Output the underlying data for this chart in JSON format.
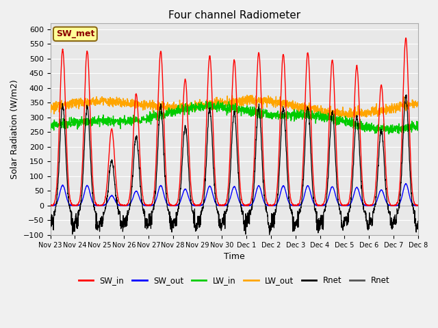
{
  "title": "Four channel Radiometer",
  "xlabel": "Time",
  "ylabel": "Solar Radiation (W/m2)",
  "ylim": [
    -100,
    620
  ],
  "yticks": [
    -100,
    -50,
    0,
    50,
    100,
    150,
    200,
    250,
    300,
    350,
    400,
    450,
    500,
    550,
    600
  ],
  "x_tick_labels": [
    "Nov 23",
    "Nov 24",
    "Nov 25",
    "Nov 26",
    "Nov 27",
    "Nov 28",
    "Nov 29",
    "Nov 30",
    "Dec 1",
    "Dec 2",
    "Dec 3",
    "Dec 4",
    "Dec 5",
    "Dec 6",
    "Dec 7",
    "Dec 8"
  ],
  "annotation_text": "SW_met",
  "annotation_box_color": "#FFFF99",
  "annotation_box_edge": "#8B6914",
  "colors": {
    "SW_in": "#FF0000",
    "SW_out": "#0000FF",
    "LW_in": "#00CC00",
    "LW_out": "#FFA500",
    "Rnet_black": "#000000"
  },
  "legend_entries": [
    "SW_in",
    "SW_out",
    "LW_in",
    "LW_out",
    "Rnet",
    "Rnet"
  ],
  "legend_colors": [
    "#FF0000",
    "#0000FF",
    "#00CC00",
    "#FFA500",
    "#000000",
    "#555555"
  ],
  "num_days": 15,
  "background_color": "#E8E8E8",
  "grid_color": "#FFFFFF",
  "peak_heights_sw": [
    530,
    525,
    260,
    380,
    525,
    430,
    510,
    495,
    520,
    515,
    520,
    495,
    475,
    410,
    570
  ],
  "lw_in_base": 290,
  "lw_out_base": 355,
  "night_rnet": -60
}
